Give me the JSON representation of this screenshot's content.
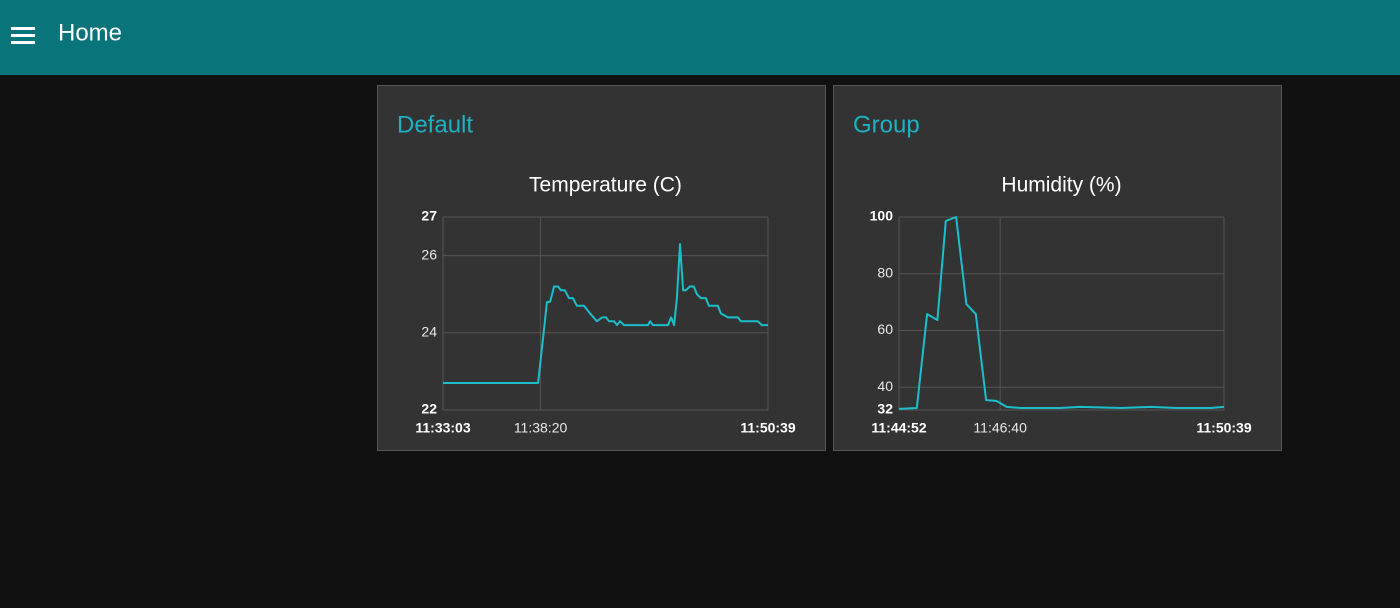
{
  "header": {
    "title": "Home"
  },
  "groups": [
    {
      "title": "Default"
    },
    {
      "title": "Group"
    }
  ],
  "chart_data": [
    {
      "type": "line",
      "title": "Temperature (C)",
      "color": "#1bbfcc",
      "grid": true,
      "x": [
        "11:33:03",
        "11:38:12",
        "11:38:41",
        "11:38:51",
        "11:39:04",
        "11:39:17",
        "11:39:26",
        "11:39:39",
        "11:39:52",
        "11:40:05",
        "11:40:18",
        "11:40:41",
        "11:41:01",
        "11:41:23",
        "11:41:40",
        "11:41:53",
        "11:42:02",
        "11:42:19",
        "11:42:28",
        "11:42:38",
        "11:42:51",
        "11:44:09",
        "11:44:16",
        "11:44:25",
        "11:45:14",
        "11:45:24",
        "11:45:34",
        "11:45:43",
        "11:45:53",
        "11:46:03",
        "11:46:12",
        "11:46:25",
        "11:46:38",
        "11:46:48",
        "11:47:01",
        "11:47:17",
        "11:47:27",
        "11:47:56",
        "11:48:06",
        "11:48:29",
        "11:49:01",
        "11:49:11",
        "11:50:06",
        "11:50:19",
        "11:50:39"
      ],
      "values": [
        22.7,
        22.7,
        24.8,
        24.8,
        25.2,
        25.2,
        25.1,
        25.1,
        24.9,
        24.9,
        24.7,
        24.7,
        24.5,
        24.3,
        24.4,
        24.4,
        24.3,
        24.3,
        24.2,
        24.3,
        24.2,
        24.2,
        24.3,
        24.2,
        24.2,
        24.4,
        24.2,
        24.9,
        26.3,
        25.1,
        25.1,
        25.2,
        25.2,
        25.0,
        24.9,
        24.9,
        24.7,
        24.7,
        24.5,
        24.4,
        24.4,
        24.3,
        24.3,
        24.2,
        24.2
      ],
      "xlim": [
        "11:33:03",
        "11:50:39"
      ],
      "xticks": [
        "11:33:03",
        "11:38:20",
        "11:50:39"
      ],
      "ylim": [
        22,
        27
      ],
      "yticks": [
        22,
        24,
        26,
        27
      ]
    },
    {
      "type": "line",
      "title": "Humidity (%)",
      "color": "#1bbfcc",
      "grid": true,
      "x": [
        "11:44:52",
        "11:45:11",
        "11:45:22",
        "11:45:33",
        "11:45:42",
        "11:45:53",
        "11:46:04",
        "11:46:14",
        "11:46:25",
        "11:46:36",
        "11:46:47",
        "11:47:02",
        "11:47:44",
        "11:48:06",
        "11:48:49",
        "11:49:21",
        "11:49:48",
        "11:50:25",
        "11:50:39"
      ],
      "values": [
        32.4,
        32.7,
        65.8,
        63.7,
        98.6,
        100,
        69.3,
        65.8,
        35.5,
        35.2,
        33.1,
        32.7,
        32.7,
        33.1,
        32.7,
        33.1,
        32.7,
        32.7,
        33.1
      ],
      "xlim": [
        "11:44:52",
        "11:50:39"
      ],
      "xticks": [
        "11:44:52",
        "11:46:40",
        "11:50:39"
      ],
      "ylim": [
        32,
        100
      ],
      "yticks": [
        32,
        40,
        60,
        80,
        100
      ]
    }
  ]
}
